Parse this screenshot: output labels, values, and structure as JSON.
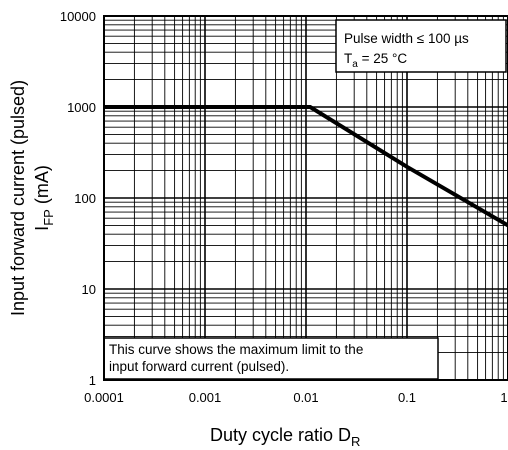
{
  "chart_data": {
    "type": "line",
    "x_scale": "log",
    "y_scale": "log",
    "xlim": [
      0.0001,
      1
    ],
    "ylim": [
      1,
      10000
    ],
    "x_ticks": [
      "0.0001",
      "0.001",
      "0.01",
      "0.1",
      "1"
    ],
    "y_ticks": [
      "1",
      "10",
      "100",
      "1000",
      "10000"
    ],
    "xlabel": "Duty cycle ratio  D",
    "xlabel_sub": "R",
    "ylabel_line1": "Input forward current (pulsed)",
    "ylabel_line2_main": "I",
    "ylabel_line2_sub": "FP",
    "ylabel_line2_unit": "  (mA)",
    "grid": true,
    "series": [
      {
        "x": [
          0.0001,
          0.011,
          0.1,
          1
        ],
        "y": [
          1000,
          1000,
          220,
          50
        ]
      }
    ],
    "annotations": {
      "condition_line1": "Pulse width ≤ 100 µs",
      "condition_line2_main": "T",
      "condition_line2_sub": "a",
      "condition_line2_rest": " = 25 °C",
      "note_line1": "This curve shows the maximum limit to the",
      "note_line2": "input forward current (pulsed)."
    }
  }
}
